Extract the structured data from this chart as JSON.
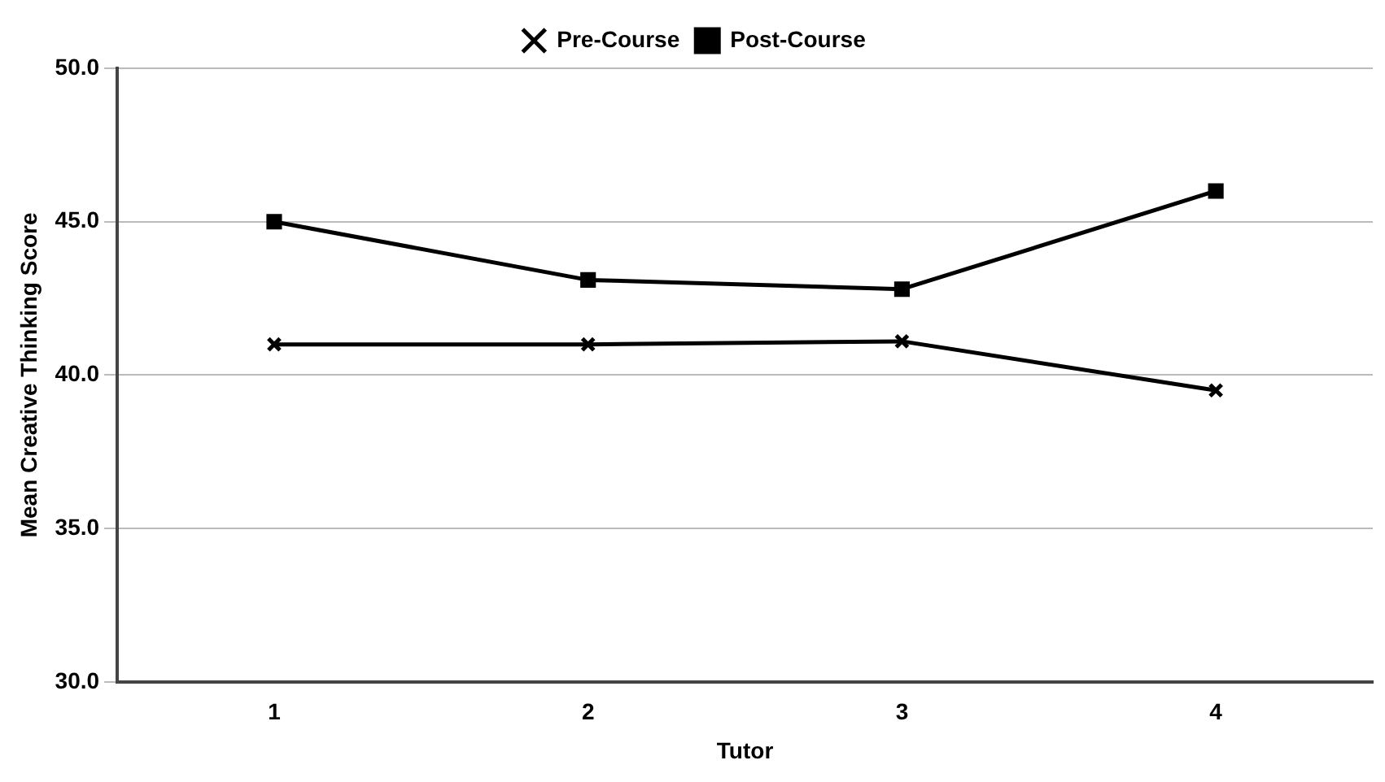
{
  "chart_data": {
    "type": "line",
    "xlabel": "Tutor",
    "ylabel": "Mean Creative Thinking Score",
    "categories": [
      "1",
      "2",
      "3",
      "4"
    ],
    "series": [
      {
        "name": "Pre-Course",
        "color": "#000000",
        "marker": "cross",
        "values": [
          41.0,
          41.0,
          41.1,
          39.5
        ]
      },
      {
        "name": "Post-Course",
        "color": "#000000",
        "marker": "square",
        "values": [
          45.0,
          43.1,
          42.8,
          46.0
        ]
      }
    ],
    "ylim": [
      30,
      50
    ],
    "yticks": [
      {
        "value": 30,
        "label": "30.0"
      },
      {
        "value": 35,
        "label": "35.0"
      },
      {
        "value": 40,
        "label": "40.0"
      },
      {
        "value": 45,
        "label": "45.0"
      },
      {
        "value": 50,
        "label": "50.0"
      }
    ],
    "grid": "y",
    "legend": "top"
  }
}
